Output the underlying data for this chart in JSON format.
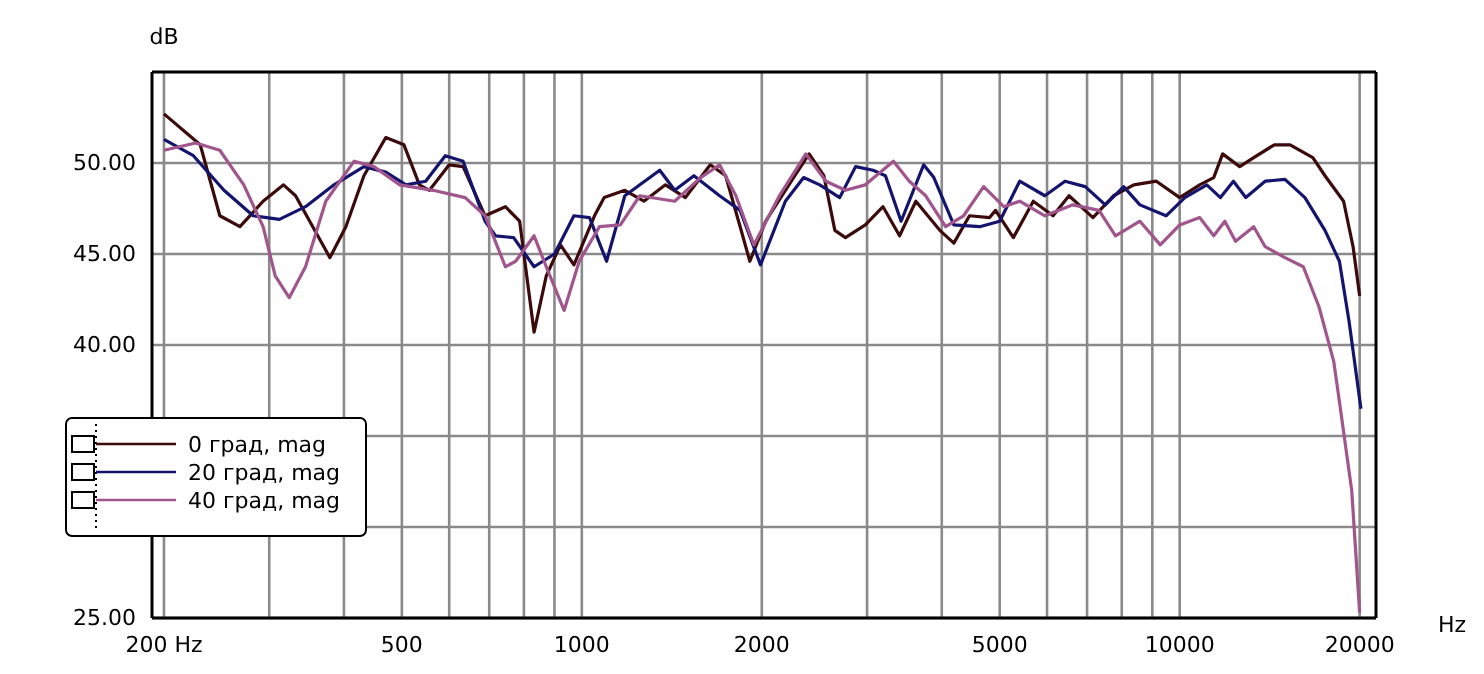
{
  "chart_data": {
    "type": "line",
    "ylabel": "dB",
    "xlabel": "Hz",
    "log": "x",
    "grid": true,
    "legend": "left",
    "line_style": "solid",
    "marker": "none",
    "xlim": [
      191,
      21300
    ],
    "ylim": [
      25,
      55
    ],
    "xticks": [
      {
        "value": 200,
        "label": "200 Hz"
      },
      {
        "value": 300,
        "label": null
      },
      {
        "value": 400,
        "label": null
      },
      500,
      {
        "value": 600,
        "label": null
      },
      {
        "value": 700,
        "label": null
      },
      {
        "value": 800,
        "label": null
      },
      {
        "value": 900,
        "label": null
      },
      1000,
      2000,
      {
        "value": 3000,
        "label": null
      },
      {
        "value": 4000,
        "label": null
      },
      5000,
      {
        "value": 6000,
        "label": null
      },
      {
        "value": 7000,
        "label": null
      },
      {
        "value": 8000,
        "label": null
      },
      {
        "value": 9000,
        "label": null
      },
      10000,
      20000
    ],
    "yticks": [
      {
        "value": 25,
        "label": "25.00"
      },
      {
        "value": 30,
        "label": null
      },
      {
        "value": 35,
        "label": null
      },
      {
        "value": 40,
        "label": "40.00"
      },
      {
        "value": 45,
        "label": "45.00"
      },
      {
        "value": 50,
        "label": "50.00"
      }
    ],
    "series": [
      {
        "name": "0 град, mag",
        "color": "#3c0a0a",
        "x": [
          200,
          230,
          248,
          268,
          293,
          317,
          332,
          379,
          403,
          432,
          470,
          504,
          535,
          556,
          600,
          633,
          689,
          745,
          787,
          832,
          872,
          921,
          970,
          1050,
          1090,
          1180,
          1270,
          1380,
          1490,
          1640,
          1740,
          1840,
          1910,
          2030,
          2260,
          2400,
          2540,
          2650,
          2760,
          2980,
          3190,
          3400,
          3620,
          3970,
          4190,
          4450,
          4810,
          4920,
          5270,
          5690,
          6140,
          6530,
          7160,
          7750,
          8380,
          9140,
          10000,
          10800,
          11400,
          11800,
          12600,
          13300,
          14400,
          15300,
          16700,
          17500,
          18800,
          19500,
          20000
        ],
        "values": [
          52.7,
          51,
          47.1,
          46.5,
          47.9,
          48.8,
          48.2,
          44.8,
          46.5,
          49.3,
          51.4,
          51,
          48.8,
          48.5,
          49.9,
          49.8,
          47.1,
          47.6,
          46.8,
          40.7,
          43.8,
          45.5,
          44.4,
          47.1,
          48.1,
          48.5,
          47.9,
          48.8,
          48.1,
          49.9,
          49.3,
          46.5,
          44.6,
          46.8,
          49.2,
          50.5,
          49.3,
          46.3,
          45.9,
          46.6,
          47.6,
          46,
          47.9,
          46.3,
          45.6,
          47.1,
          47,
          47.4,
          45.9,
          47.9,
          47.1,
          48.2,
          47,
          48.2,
          48.8,
          49,
          48.1,
          48.8,
          49.2,
          50.5,
          49.8,
          50.3,
          51,
          51,
          50.3,
          49.3,
          47.9,
          45.4,
          42.7
        ]
      },
      {
        "name": "20 град, mag",
        "color": "#14146e",
        "x": [
          200,
          224,
          252,
          282,
          312,
          345,
          385,
          432,
          470,
          508,
          548,
          591,
          633,
          689,
          717,
          769,
          832,
          900,
          970,
          1030,
          1100,
          1180,
          1350,
          1430,
          1540,
          1700,
          1840,
          1990,
          2190,
          2350,
          2500,
          2700,
          2870,
          3070,
          3220,
          3420,
          3730,
          3880,
          4190,
          4630,
          5000,
          5400,
          5950,
          6430,
          6950,
          7510,
          8060,
          8580,
          9490,
          10200,
          11100,
          11700,
          12300,
          12900,
          13900,
          15000,
          16200,
          17500,
          18500,
          19200,
          20100
        ],
        "values": [
          51.3,
          50.4,
          48.5,
          47.1,
          46.9,
          47.6,
          48.8,
          49.8,
          49.5,
          48.8,
          49,
          50.4,
          50.1,
          46.8,
          46,
          45.9,
          44.3,
          45,
          47.1,
          47,
          44.6,
          48.2,
          49.6,
          48.5,
          49.3,
          48.2,
          47.4,
          44.4,
          47.9,
          49.2,
          48.8,
          48.1,
          49.8,
          49.6,
          49.3,
          46.8,
          49.9,
          49.2,
          46.6,
          46.5,
          46.8,
          49,
          48.2,
          49,
          48.7,
          47.7,
          48.7,
          47.7,
          47.1,
          48.1,
          48.8,
          48.1,
          49,
          48.1,
          49,
          49.1,
          48.1,
          46.3,
          44.6,
          41.3,
          36.5
        ]
      },
      {
        "name": "40 град, mag",
        "color": "#a0558c",
        "x": [
          200,
          226,
          248,
          272,
          293,
          307,
          324,
          345,
          373,
          416,
          449,
          496,
          564,
          638,
          689,
          745,
          775,
          832,
          872,
          934,
          990,
          1070,
          1160,
          1250,
          1430,
          1580,
          1700,
          1810,
          1940,
          2140,
          2370,
          2560,
          2760,
          2980,
          3320,
          3530,
          3760,
          4060,
          4350,
          4700,
          5080,
          5400,
          5950,
          6630,
          7330,
          7810,
          8580,
          9280,
          10000,
          10800,
          11400,
          11900,
          12400,
          13300,
          13900,
          15000,
          16100,
          17100,
          18100,
          18500,
          19400,
          20000
        ],
        "values": [
          50.7,
          51.1,
          50.7,
          48.8,
          46.5,
          43.8,
          42.6,
          44.3,
          47.9,
          50.1,
          49.8,
          48.8,
          48.5,
          48.1,
          47.1,
          44.3,
          44.6,
          46,
          44.3,
          41.9,
          44.6,
          46.5,
          46.6,
          48.2,
          47.9,
          49.2,
          49.9,
          48.2,
          45.5,
          48.2,
          50.5,
          49,
          48.5,
          48.8,
          50.1,
          49,
          48.2,
          46.5,
          47.1,
          48.7,
          47.6,
          47.9,
          47.1,
          47.7,
          47.4,
          46,
          46.8,
          45.5,
          46.6,
          47,
          46,
          46.8,
          45.7,
          46.5,
          45.4,
          44.8,
          44.3,
          42.1,
          39.1,
          36.9,
          32,
          25.3
        ]
      }
    ]
  }
}
